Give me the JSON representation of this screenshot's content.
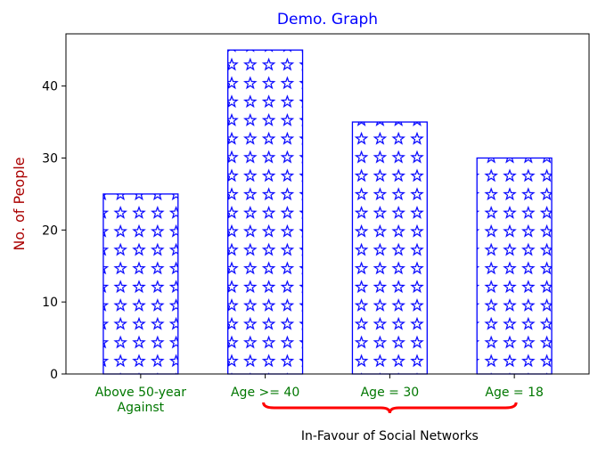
{
  "chart_data": {
    "type": "bar",
    "title": "Demo. Graph",
    "xlabel": "",
    "ylabel": "No. of People",
    "categories": [
      [
        "Above 50-year",
        "Against"
      ],
      [
        "Age >= 40"
      ],
      [
        "Age = 30"
      ],
      [
        "Age = 18"
      ]
    ],
    "values": [
      25,
      45,
      35,
      30
    ],
    "ylim": [
      0,
      47.25
    ],
    "yticks": [
      0,
      10,
      20,
      30,
      40
    ],
    "grid": false,
    "bar_fill": "#ffffff",
    "bar_edge_color": "#0000ff",
    "hatch": "star",
    "annotation": {
      "text": "In-Favour of Social Networks",
      "spans_categories": [
        1,
        3
      ],
      "brace_color": "#ff0000"
    }
  },
  "colors": {
    "title": "#0000ff",
    "ylabel": "#aa0000",
    "category_labels": "#007700",
    "axis": "#000000"
  }
}
